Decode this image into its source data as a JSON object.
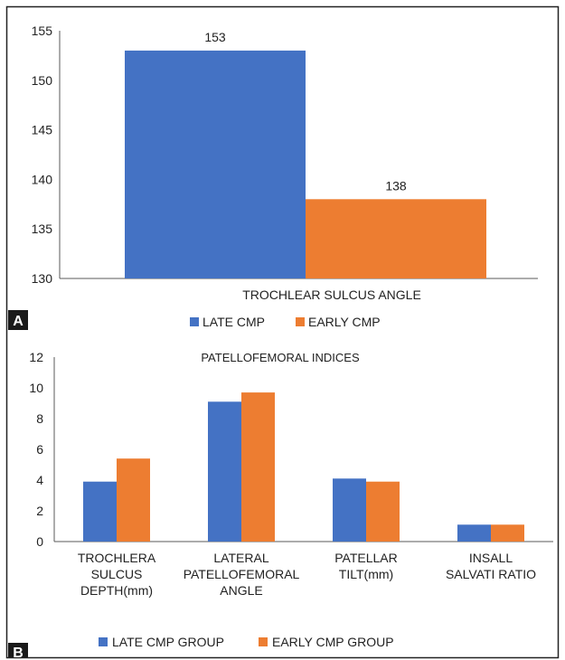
{
  "panel_labels": {
    "a": "A",
    "b": "B"
  },
  "colors": {
    "late": "#4472C4",
    "early": "#ED7D31",
    "axis": "#595959",
    "frame": "#222222"
  },
  "chart_data": [
    {
      "type": "bar",
      "panel": "A",
      "title": "",
      "categories": [
        "TROCHLEAR SULCUS ANGLE"
      ],
      "series": [
        {
          "name": "LATE CMP",
          "values": [
            153
          ]
        },
        {
          "name": "EARLY CMP",
          "values": [
            138
          ]
        }
      ],
      "data_labels": [
        "153",
        "138"
      ],
      "ylim": [
        130,
        155
      ],
      "yticks": [
        130,
        135,
        140,
        145,
        150,
        155
      ],
      "grid": false,
      "legend": "bottom"
    },
    {
      "type": "bar",
      "panel": "B",
      "title": "PATELLOFEMORAL INDICES",
      "categories": [
        [
          "TROCHLERA",
          "SULCUS",
          "DEPTH(mm)"
        ],
        [
          "LATERAL",
          "PATELLOFEMORAL",
          "ANGLE"
        ],
        [
          "PATELLAR",
          "TILT(mm)"
        ],
        [
          "INSALL",
          "SALVATI RATIO"
        ]
      ],
      "series": [
        {
          "name": "LATE CMP GROUP",
          "values": [
            3.9,
            9.1,
            4.1,
            1.1
          ]
        },
        {
          "name": "EARLY CMP GROUP",
          "values": [
            5.4,
            9.7,
            3.9,
            1.1
          ]
        }
      ],
      "ylim": [
        0,
        12
      ],
      "yticks": [
        0,
        2,
        4,
        6,
        8,
        10,
        12
      ],
      "grid": false,
      "legend": "bottom"
    }
  ]
}
